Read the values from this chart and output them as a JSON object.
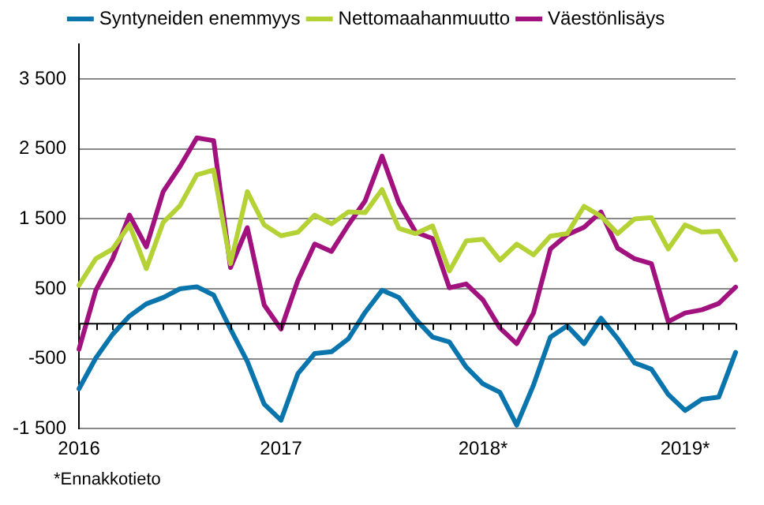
{
  "chart_data": {
    "type": "line",
    "categories": [
      "2016",
      null,
      null,
      null,
      null,
      null,
      null,
      null,
      null,
      null,
      null,
      null,
      "2017",
      null,
      null,
      null,
      null,
      null,
      null,
      null,
      null,
      null,
      null,
      null,
      "2018*",
      null,
      null,
      null,
      null,
      null,
      null,
      null,
      null,
      null,
      null,
      null,
      "2019*",
      null,
      null,
      null
    ],
    "series": [
      {
        "name": "Syntyneiden enemmyys",
        "color": "#0a75ad",
        "values": [
          -930,
          -490,
          -150,
          110,
          285,
          375,
          500,
          530,
          410,
          -75,
          -540,
          -1150,
          -1380,
          -715,
          -425,
          -400,
          -215,
          165,
          480,
          375,
          65,
          -190,
          -260,
          -620,
          -860,
          -980,
          -1450,
          -875,
          -190,
          -30,
          -285,
          80,
          -215,
          -560,
          -650,
          -1010,
          -1240,
          -1080,
          -1050,
          -410
        ]
      },
      {
        "name": "Nettomaahanmuutto",
        "color": "#b4d235",
        "values": [
          550,
          930,
          1070,
          1415,
          790,
          1450,
          1690,
          2130,
          2200,
          860,
          1890,
          1415,
          1260,
          1310,
          1555,
          1430,
          1600,
          1590,
          1920,
          1365,
          1290,
          1400,
          755,
          1185,
          1210,
          910,
          1140,
          985,
          1255,
          1290,
          1680,
          1540,
          1290,
          1500,
          1520,
          1070,
          1415,
          1310,
          1325,
          915
        ]
      },
      {
        "name": "Väestönlisäys",
        "color": "#a1127f",
        "values": [
          -365,
          480,
          930,
          1555,
          1100,
          1890,
          2250,
          2660,
          2620,
          805,
          1375,
          270,
          -75,
          620,
          1140,
          1035,
          1415,
          1760,
          2400,
          1730,
          1310,
          1220,
          515,
          570,
          340,
          -60,
          -285,
          155,
          1070,
          1275,
          1380,
          1600,
          1080,
          930,
          860,
          30,
          155,
          200,
          290,
          525
        ]
      }
    ],
    "ylim": [
      -1500,
      4000
    ],
    "yticks": [
      -1500,
      -500,
      500,
      1500,
      2500,
      3500
    ],
    "grid": "y",
    "legend": "top",
    "marker": "none",
    "line_style": "solid",
    "annotations": [
      "*Ennakkotieto"
    ]
  }
}
